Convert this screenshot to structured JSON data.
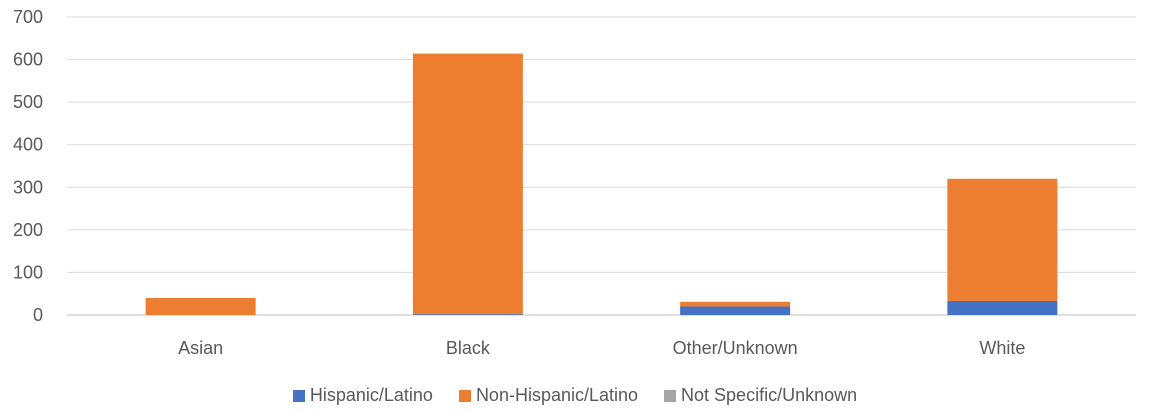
{
  "chart_data": {
    "type": "bar",
    "stacked": true,
    "categories": [
      "Asian",
      "Black",
      "Other/Unknown",
      "White"
    ],
    "series": [
      {
        "name": "Hispanic/Latino",
        "color": "#4472C4",
        "values": [
          0,
          2,
          20,
          33
        ]
      },
      {
        "name": "Non-Hispanic/Latino",
        "color": "#ED7D31",
        "values": [
          40,
          612,
          11,
          287
        ]
      },
      {
        "name": "Not Specific/Unknown",
        "color": "#A5A5A5",
        "values": [
          0,
          0,
          0,
          0
        ]
      }
    ],
    "ylim": [
      0,
      700
    ],
    "yticks": [
      0,
      100,
      200,
      300,
      400,
      500,
      600,
      700
    ],
    "grid": true,
    "legend_position": "bottom"
  }
}
